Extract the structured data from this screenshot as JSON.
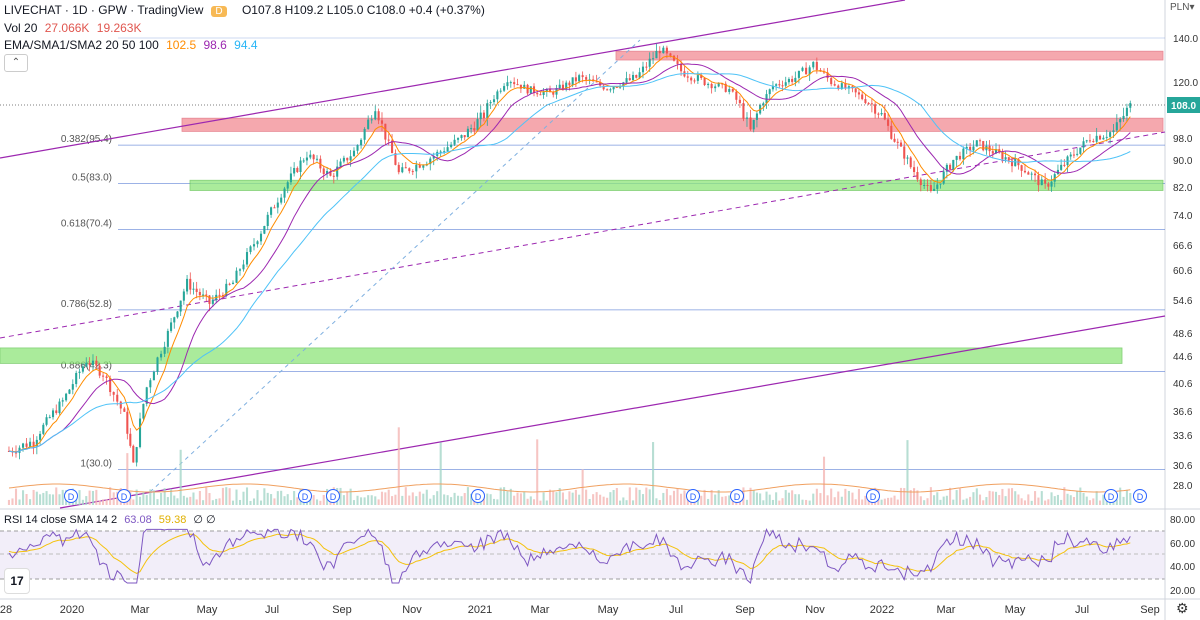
{
  "header": {
    "symbol": "LIVECHAT · 1D · GPW · TradingView",
    "badge": "D",
    "ohlc": "O107.8 H109.2 L105.0 C108.0 +0.4 (+0.37%)",
    "vol_label": "Vol 20",
    "vol_v1": "27.066K",
    "vol_v2": "19.263K",
    "ma_label": "EMA/SMA1/SMA2 20 50 100",
    "ma_v1": "102.5",
    "ma_v2": "98.6",
    "ma_v3": "94.4",
    "rsi_label": "RSI 14 close SMA 14 2",
    "rsi_v1": "63.08",
    "rsi_v2": "59.38",
    "rsi_v3": "∅ ∅",
    "collapse": "⌃",
    "currency": "PLN▾"
  },
  "colors": {
    "up": "#26a69a",
    "down": "#ef5350",
    "ema": "#ff8c00",
    "sma1": "#9c27b0",
    "sma2": "#4fc3f7",
    "rsi": "#7e57c2",
    "rsi_sma": "#f4c20d",
    "resistance": "#f28b94",
    "support": "#8ee57a",
    "channel": "#9c27b0",
    "fib": "#5b7fd6",
    "last": "#26a69a"
  },
  "chart_data": {
    "type": "candlestick",
    "title": "LIVECHAT · 1D · GPW",
    "price_axis": [
      "140.0",
      "120.0",
      "108.0",
      "98.0",
      "90.0",
      "82.0",
      "74.0",
      "66.6",
      "60.6",
      "54.6",
      "48.6",
      "44.6",
      "40.6",
      "36.6",
      "33.6",
      "30.6",
      "28.0"
    ],
    "last_price": "108.0",
    "time_axis": [
      "28",
      "2020",
      "Mar",
      "May",
      "Jul",
      "Sep",
      "Nov",
      "2021",
      "Mar",
      "May",
      "Jul",
      "Sep",
      "Nov",
      "2022",
      "Mar",
      "May",
      "Jul",
      "Sep"
    ],
    "fib_levels": [
      {
        "label": "0.382(95.4)",
        "value": 95.4
      },
      {
        "label": "0.5(83.0)",
        "value": 83.0
      },
      {
        "label": "0.618(70.4)",
        "value": 70.4
      },
      {
        "label": "0.786(52.8)",
        "value": 52.8
      },
      {
        "label": "0.886(42.3)",
        "value": 42.3
      },
      {
        "label": "1(30.0)",
        "value": 30.0
      }
    ],
    "zones": [
      {
        "kind": "resistance",
        "from": 130,
        "to": 134
      },
      {
        "kind": "resistance",
        "from": 100,
        "to": 104
      },
      {
        "kind": "support",
        "from": 81,
        "to": 84
      },
      {
        "kind": "support",
        "from": 43.5,
        "to": 46
      }
    ],
    "price_series_approx": [
      [
        "2019-11-28",
        32
      ],
      [
        "2019-12-20",
        33
      ],
      [
        "2020-01-15",
        38
      ],
      [
        "2020-02-05",
        44
      ],
      [
        "2020-02-20",
        42
      ],
      [
        "2020-03-10",
        36
      ],
      [
        "2020-03-18",
        30.5
      ],
      [
        "2020-03-30",
        40
      ],
      [
        "2020-04-15",
        47
      ],
      [
        "2020-05-05",
        58
      ],
      [
        "2020-05-25",
        54
      ],
      [
        "2020-06-15",
        58
      ],
      [
        "2020-07-10",
        70
      ],
      [
        "2020-07-31",
        82
      ],
      [
        "2020-08-20",
        92
      ],
      [
        "2020-09-10",
        85
      ],
      [
        "2020-10-01",
        93
      ],
      [
        "2020-10-20",
        108
      ],
      [
        "2020-11-10",
        86
      ],
      [
        "2020-12-05",
        90
      ],
      [
        "2021-01-05",
        98
      ],
      [
        "2021-01-25",
        105
      ],
      [
        "2021-02-15",
        122
      ],
      [
        "2021-03-05",
        116
      ],
      [
        "2021-03-25",
        114
      ],
      [
        "2021-04-20",
        122
      ],
      [
        "2021-05-15",
        117
      ],
      [
        "2021-06-10",
        122
      ],
      [
        "2021-07-01",
        135
      ],
      [
        "2021-07-20",
        125
      ],
      [
        "2021-08-10",
        120
      ],
      [
        "2021-09-01",
        116
      ],
      [
        "2021-09-20",
        100
      ],
      [
        "2021-10-10",
        118
      ],
      [
        "2021-10-30",
        122
      ],
      [
        "2021-11-15",
        128
      ],
      [
        "2021-12-01",
        120
      ],
      [
        "2021-12-20",
        115
      ],
      [
        "2022-01-15",
        105
      ],
      [
        "2022-02-10",
        88
      ],
      [
        "2022-02-28",
        80
      ],
      [
        "2022-03-20",
        90
      ],
      [
        "2022-04-10",
        96
      ],
      [
        "2022-04-30",
        92
      ],
      [
        "2022-05-20",
        88
      ],
      [
        "2022-06-10",
        82
      ],
      [
        "2022-06-30",
        90
      ],
      [
        "2022-07-20",
        98
      ],
      [
        "2022-08-10",
        100
      ],
      [
        "2022-08-25",
        108
      ]
    ],
    "rsi_axis": [
      "80.00",
      "60.00",
      "40.00",
      "20.00"
    ],
    "dividend_markers": 10
  }
}
